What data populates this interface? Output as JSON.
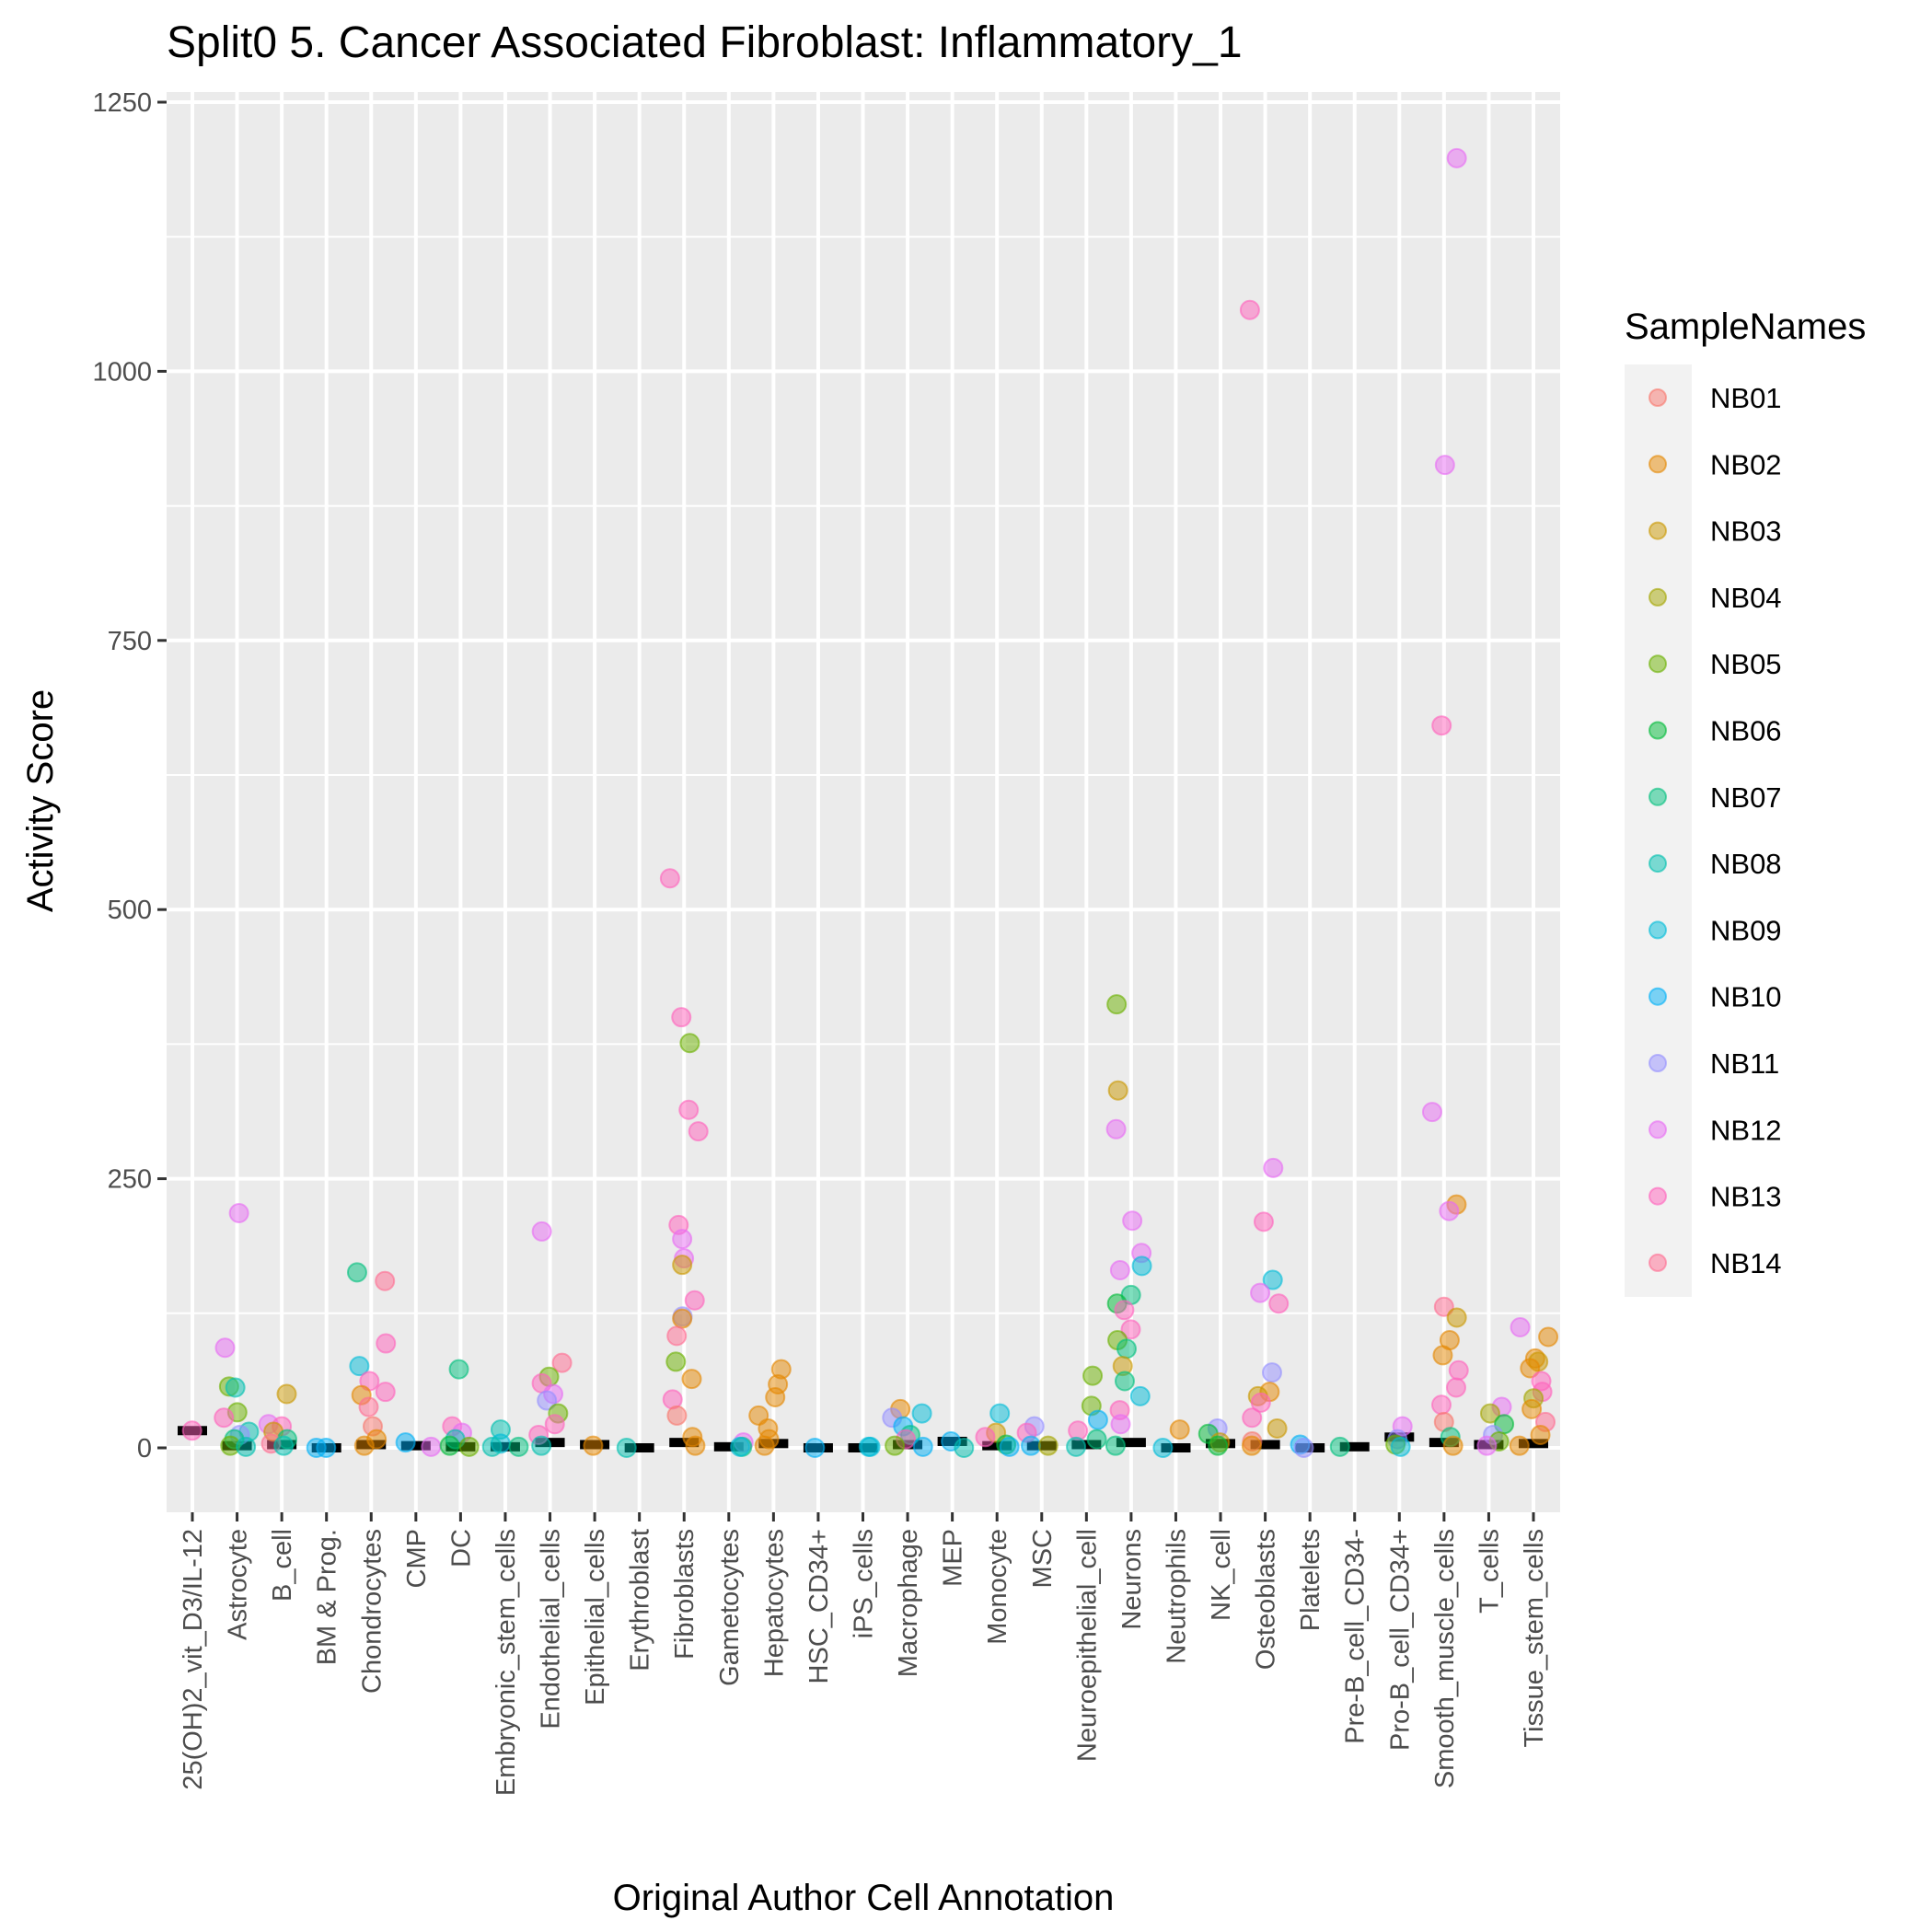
{
  "chart_data": {
    "type": "scatter",
    "subtype": "jitter-strip",
    "title": "Split0 5. Cancer Associated Fibroblast: Inflammatory_1",
    "xlabel": "Original Author Cell Annotation",
    "ylabel": "Activity Score",
    "ylim": [
      -120,
      1270
    ],
    "yticks": [
      0,
      250,
      500,
      750,
      1000,
      1250
    ],
    "ytick_labels": [
      "0",
      "250",
      "500",
      "750",
      "1000",
      "1250"
    ],
    "grid": true,
    "legend": {
      "title": "SampleNames",
      "position": "right",
      "entries": [
        {
          "label": "NB01",
          "color": "#F8766D"
        },
        {
          "label": "NB02",
          "color": "#E58700"
        },
        {
          "label": "NB03",
          "color": "#C99800"
        },
        {
          "label": "NB04",
          "color": "#A3A500"
        },
        {
          "label": "NB05",
          "color": "#6BB100"
        },
        {
          "label": "NB06",
          "color": "#00BA38"
        },
        {
          "label": "NB07",
          "color": "#00BF7D"
        },
        {
          "label": "NB08",
          "color": "#00C0AF"
        },
        {
          "label": "NB09",
          "color": "#00BCD8"
        },
        {
          "label": "NB10",
          "color": "#00B0F6"
        },
        {
          "label": "NB11",
          "color": "#9590FF"
        },
        {
          "label": "NB12",
          "color": "#E76BF3"
        },
        {
          "label": "NB13",
          "color": "#FF62BC"
        },
        {
          "label": "NB14",
          "color": "#FF6C91"
        }
      ]
    },
    "categories": [
      "25(OH)2_vit_D3/IL-12",
      "Astrocyte",
      "B_cell",
      "BM & Prog.",
      "Chondrocytes",
      "CMP",
      "DC",
      "Embryonic_stem_cells",
      "Endothelial_cells",
      "Epithelial_cells",
      "Erythroblast",
      "Fibroblasts",
      "Gametocytes",
      "Hepatocytes",
      "HSC_CD34+",
      "iPS_cells",
      "Macrophage",
      "MEP",
      "Monocyte",
      "MSC",
      "Neuroepithelial_cell",
      "Neurons",
      "Neutrophils",
      "NK_cell",
      "Osteoblasts",
      "Platelets",
      "Pre-B_cell_CD34-",
      "Pro-B_cell_CD34+",
      "Smooth_muscle_cells",
      "T_cells",
      "Tissue_stem_cells"
    ],
    "medians": [
      16,
      2,
      3,
      0,
      3,
      2,
      1,
      1,
      5,
      3,
      0,
      5,
      1,
      4,
      0,
      0,
      3,
      6,
      2,
      2,
      3,
      5,
      0,
      4,
      3,
      0,
      1,
      10,
      5,
      3,
      4
    ],
    "points": [
      {
        "cat": 0,
        "s": "NB13",
        "y": 16
      },
      {
        "cat": 1,
        "s": "NB12",
        "y": 218
      },
      {
        "cat": 1,
        "s": "NB12",
        "y": 93
      },
      {
        "cat": 1,
        "s": "NB05",
        "y": 57
      },
      {
        "cat": 1,
        "s": "NB08",
        "y": 56
      },
      {
        "cat": 1,
        "s": "NB05",
        "y": 33
      },
      {
        "cat": 1,
        "s": "NB13",
        "y": 28
      },
      {
        "cat": 1,
        "s": "NB08",
        "y": 15
      },
      {
        "cat": 1,
        "s": "NB11",
        "y": 12
      },
      {
        "cat": 1,
        "s": "NB07",
        "y": 8
      },
      {
        "cat": 1,
        "s": "NB05",
        "y": 2
      },
      {
        "cat": 1,
        "s": "NB08",
        "y": 1
      },
      {
        "cat": 2,
        "s": "NB03",
        "y": 50
      },
      {
        "cat": 2,
        "s": "NB12",
        "y": 22
      },
      {
        "cat": 2,
        "s": "NB13",
        "y": 20
      },
      {
        "cat": 2,
        "s": "NB03",
        "y": 15
      },
      {
        "cat": 2,
        "s": "NB07",
        "y": 8
      },
      {
        "cat": 2,
        "s": "NB14",
        "y": 4
      },
      {
        "cat": 2,
        "s": "NB08",
        "y": 2
      },
      {
        "cat": 3,
        "s": "NB10",
        "y": 0
      },
      {
        "cat": 3,
        "s": "NB10",
        "y": 0
      },
      {
        "cat": 4,
        "s": "NB07",
        "y": 163
      },
      {
        "cat": 4,
        "s": "NB14",
        "y": 155
      },
      {
        "cat": 4,
        "s": "NB13",
        "y": 97
      },
      {
        "cat": 4,
        "s": "NB09",
        "y": 76
      },
      {
        "cat": 4,
        "s": "NB13",
        "y": 62
      },
      {
        "cat": 4,
        "s": "NB13",
        "y": 52
      },
      {
        "cat": 4,
        "s": "NB02",
        "y": 49
      },
      {
        "cat": 4,
        "s": "NB14",
        "y": 38
      },
      {
        "cat": 4,
        "s": "NB01",
        "y": 20
      },
      {
        "cat": 4,
        "s": "NB02",
        "y": 8
      },
      {
        "cat": 4,
        "s": "NB02",
        "y": 2
      },
      {
        "cat": 5,
        "s": "NB10",
        "y": 5
      },
      {
        "cat": 5,
        "s": "NB12",
        "y": 1
      },
      {
        "cat": 6,
        "s": "NB07",
        "y": 73
      },
      {
        "cat": 6,
        "s": "NB13",
        "y": 20
      },
      {
        "cat": 6,
        "s": "NB12",
        "y": 14
      },
      {
        "cat": 6,
        "s": "NB08",
        "y": 8
      },
      {
        "cat": 6,
        "s": "NB06",
        "y": 2
      },
      {
        "cat": 6,
        "s": "NB05",
        "y": 1
      },
      {
        "cat": 7,
        "s": "NB08",
        "y": 17
      },
      {
        "cat": 7,
        "s": "NB09",
        "y": 4
      },
      {
        "cat": 7,
        "s": "NB08",
        "y": 1
      },
      {
        "cat": 7,
        "s": "NB07",
        "y": 1
      },
      {
        "cat": 8,
        "s": "NB12",
        "y": 201
      },
      {
        "cat": 8,
        "s": "NB14",
        "y": 79
      },
      {
        "cat": 8,
        "s": "NB05",
        "y": 66
      },
      {
        "cat": 8,
        "s": "NB13",
        "y": 60
      },
      {
        "cat": 8,
        "s": "NB12",
        "y": 50
      },
      {
        "cat": 8,
        "s": "NB11",
        "y": 44
      },
      {
        "cat": 8,
        "s": "NB05",
        "y": 32
      },
      {
        "cat": 8,
        "s": "NB13",
        "y": 22
      },
      {
        "cat": 8,
        "s": "NB13",
        "y": 12
      },
      {
        "cat": 8,
        "s": "NB08",
        "y": 2
      },
      {
        "cat": 9,
        "s": "NB02",
        "y": 2
      },
      {
        "cat": 10,
        "s": "NB08",
        "y": 0
      },
      {
        "cat": 11,
        "s": "NB13",
        "y": 529
      },
      {
        "cat": 11,
        "s": "NB13",
        "y": 400
      },
      {
        "cat": 11,
        "s": "NB05",
        "y": 376
      },
      {
        "cat": 11,
        "s": "NB13",
        "y": 314
      },
      {
        "cat": 11,
        "s": "NB13",
        "y": 294
      },
      {
        "cat": 11,
        "s": "NB13",
        "y": 207
      },
      {
        "cat": 11,
        "s": "NB12",
        "y": 194
      },
      {
        "cat": 11,
        "s": "NB12",
        "y": 176
      },
      {
        "cat": 11,
        "s": "NB03",
        "y": 170
      },
      {
        "cat": 11,
        "s": "NB13",
        "y": 137
      },
      {
        "cat": 11,
        "s": "NB11",
        "y": 122
      },
      {
        "cat": 11,
        "s": "NB02",
        "y": 120
      },
      {
        "cat": 11,
        "s": "NB14",
        "y": 104
      },
      {
        "cat": 11,
        "s": "NB05",
        "y": 80
      },
      {
        "cat": 11,
        "s": "NB02",
        "y": 64
      },
      {
        "cat": 11,
        "s": "NB13",
        "y": 45
      },
      {
        "cat": 11,
        "s": "NB01",
        "y": 30
      },
      {
        "cat": 11,
        "s": "NB02",
        "y": 10
      },
      {
        "cat": 11,
        "s": "NB02",
        "y": 2
      },
      {
        "cat": 12,
        "s": "NB12",
        "y": 5
      },
      {
        "cat": 12,
        "s": "NB07",
        "y": 1
      },
      {
        "cat": 12,
        "s": "NB09",
        "y": 1
      },
      {
        "cat": 13,
        "s": "NB02",
        "y": 73
      },
      {
        "cat": 13,
        "s": "NB02",
        "y": 59
      },
      {
        "cat": 13,
        "s": "NB02",
        "y": 47
      },
      {
        "cat": 13,
        "s": "NB02",
        "y": 30
      },
      {
        "cat": 13,
        "s": "NB02",
        "y": 18
      },
      {
        "cat": 13,
        "s": "NB02",
        "y": 8
      },
      {
        "cat": 13,
        "s": "NB02",
        "y": 2
      },
      {
        "cat": 14,
        "s": "NB10",
        "y": 0
      },
      {
        "cat": 15,
        "s": "NB09",
        "y": 1
      },
      {
        "cat": 15,
        "s": "NB09",
        "y": 1
      },
      {
        "cat": 16,
        "s": "NB02",
        "y": 36
      },
      {
        "cat": 16,
        "s": "NB09",
        "y": 32
      },
      {
        "cat": 16,
        "s": "NB11",
        "y": 28
      },
      {
        "cat": 16,
        "s": "NB10",
        "y": 20
      },
      {
        "cat": 16,
        "s": "NB07",
        "y": 12
      },
      {
        "cat": 16,
        "s": "NB13",
        "y": 8
      },
      {
        "cat": 16,
        "s": "NB05",
        "y": 2
      },
      {
        "cat": 16,
        "s": "NB10",
        "y": 1
      },
      {
        "cat": 17,
        "s": "NB10",
        "y": 6
      },
      {
        "cat": 17,
        "s": "NB08",
        "y": 0
      },
      {
        "cat": 18,
        "s": "NB09",
        "y": 32
      },
      {
        "cat": 18,
        "s": "NB03",
        "y": 14
      },
      {
        "cat": 18,
        "s": "NB13",
        "y": 10
      },
      {
        "cat": 18,
        "s": "NB06",
        "y": 3
      },
      {
        "cat": 18,
        "s": "NB10",
        "y": 1
      },
      {
        "cat": 19,
        "s": "NB11",
        "y": 20
      },
      {
        "cat": 19,
        "s": "NB13",
        "y": 14
      },
      {
        "cat": 19,
        "s": "NB10",
        "y": 2
      },
      {
        "cat": 19,
        "s": "NB04",
        "y": 2
      },
      {
        "cat": 20,
        "s": "NB05",
        "y": 67
      },
      {
        "cat": 20,
        "s": "NB05",
        "y": 39
      },
      {
        "cat": 20,
        "s": "NB10",
        "y": 26
      },
      {
        "cat": 20,
        "s": "NB13",
        "y": 16
      },
      {
        "cat": 20,
        "s": "NB07",
        "y": 8
      },
      {
        "cat": 20,
        "s": "NB08",
        "y": 1
      },
      {
        "cat": 21,
        "s": "NB05",
        "y": 412
      },
      {
        "cat": 21,
        "s": "NB03",
        "y": 332
      },
      {
        "cat": 21,
        "s": "NB12",
        "y": 296
      },
      {
        "cat": 21,
        "s": "NB12",
        "y": 211
      },
      {
        "cat": 21,
        "s": "NB12",
        "y": 181
      },
      {
        "cat": 21,
        "s": "NB09",
        "y": 169
      },
      {
        "cat": 21,
        "s": "NB12",
        "y": 165
      },
      {
        "cat": 21,
        "s": "NB07",
        "y": 142
      },
      {
        "cat": 21,
        "s": "NB06",
        "y": 134
      },
      {
        "cat": 21,
        "s": "NB13",
        "y": 128
      },
      {
        "cat": 21,
        "s": "NB13",
        "y": 110
      },
      {
        "cat": 21,
        "s": "NB05",
        "y": 100
      },
      {
        "cat": 21,
        "s": "NB07",
        "y": 92
      },
      {
        "cat": 21,
        "s": "NB03",
        "y": 76
      },
      {
        "cat": 21,
        "s": "NB07",
        "y": 62
      },
      {
        "cat": 21,
        "s": "NB09",
        "y": 48
      },
      {
        "cat": 21,
        "s": "NB13",
        "y": 35
      },
      {
        "cat": 21,
        "s": "NB12",
        "y": 22
      },
      {
        "cat": 21,
        "s": "NB07",
        "y": 2
      },
      {
        "cat": 22,
        "s": "NB02",
        "y": 17
      },
      {
        "cat": 22,
        "s": "NB09",
        "y": 0
      },
      {
        "cat": 23,
        "s": "NB11",
        "y": 18
      },
      {
        "cat": 23,
        "s": "NB06",
        "y": 13
      },
      {
        "cat": 23,
        "s": "NB03",
        "y": 5
      },
      {
        "cat": 23,
        "s": "NB06",
        "y": 2
      },
      {
        "cat": 24,
        "s": "NB13",
        "y": 1057
      },
      {
        "cat": 24,
        "s": "NB12",
        "y": 260
      },
      {
        "cat": 24,
        "s": "NB13",
        "y": 210
      },
      {
        "cat": 24,
        "s": "NB09",
        "y": 156
      },
      {
        "cat": 24,
        "s": "NB12",
        "y": 144
      },
      {
        "cat": 24,
        "s": "NB13",
        "y": 134
      },
      {
        "cat": 24,
        "s": "NB11",
        "y": 70
      },
      {
        "cat": 24,
        "s": "NB02",
        "y": 52
      },
      {
        "cat": 24,
        "s": "NB03",
        "y": 48
      },
      {
        "cat": 24,
        "s": "NB13",
        "y": 42
      },
      {
        "cat": 24,
        "s": "NB13",
        "y": 28
      },
      {
        "cat": 24,
        "s": "NB03",
        "y": 18
      },
      {
        "cat": 24,
        "s": "NB01",
        "y": 6
      },
      {
        "cat": 24,
        "s": "NB02",
        "y": 2
      },
      {
        "cat": 25,
        "s": "NB10",
        "y": 3
      },
      {
        "cat": 25,
        "s": "NB11",
        "y": 0
      },
      {
        "cat": 26,
        "s": "NB07",
        "y": 1
      },
      {
        "cat": 27,
        "s": "NB12",
        "y": 20
      },
      {
        "cat": 27,
        "s": "NB11",
        "y": 8
      },
      {
        "cat": 27,
        "s": "NB05",
        "y": 3
      },
      {
        "cat": 27,
        "s": "NB09",
        "y": 1
      },
      {
        "cat": 28,
        "s": "NB12",
        "y": 1198
      },
      {
        "cat": 28,
        "s": "NB12",
        "y": 913
      },
      {
        "cat": 28,
        "s": "NB13",
        "y": 671
      },
      {
        "cat": 28,
        "s": "NB12",
        "y": 312
      },
      {
        "cat": 28,
        "s": "NB02",
        "y": 226
      },
      {
        "cat": 28,
        "s": "NB12",
        "y": 220
      },
      {
        "cat": 28,
        "s": "NB14",
        "y": 131
      },
      {
        "cat": 28,
        "s": "NB03",
        "y": 121
      },
      {
        "cat": 28,
        "s": "NB02",
        "y": 100
      },
      {
        "cat": 28,
        "s": "NB02",
        "y": 86
      },
      {
        "cat": 28,
        "s": "NB13",
        "y": 72
      },
      {
        "cat": 28,
        "s": "NB13",
        "y": 56
      },
      {
        "cat": 28,
        "s": "NB13",
        "y": 40
      },
      {
        "cat": 28,
        "s": "NB01",
        "y": 24
      },
      {
        "cat": 28,
        "s": "NB07",
        "y": 10
      },
      {
        "cat": 28,
        "s": "NB02",
        "y": 2
      },
      {
        "cat": 29,
        "s": "NB12",
        "y": 38
      },
      {
        "cat": 29,
        "s": "NB04",
        "y": 32
      },
      {
        "cat": 29,
        "s": "NB06",
        "y": 22
      },
      {
        "cat": 29,
        "s": "NB11",
        "y": 12
      },
      {
        "cat": 29,
        "s": "NB05",
        "y": 6
      },
      {
        "cat": 29,
        "s": "NB12",
        "y": 2
      },
      {
        "cat": 30,
        "s": "NB12",
        "y": 112
      },
      {
        "cat": 30,
        "s": "NB02",
        "y": 103
      },
      {
        "cat": 30,
        "s": "NB02",
        "y": 83
      },
      {
        "cat": 30,
        "s": "NB03",
        "y": 80
      },
      {
        "cat": 30,
        "s": "NB02",
        "y": 74
      },
      {
        "cat": 30,
        "s": "NB13",
        "y": 62
      },
      {
        "cat": 30,
        "s": "NB13",
        "y": 52
      },
      {
        "cat": 30,
        "s": "NB04",
        "y": 46
      },
      {
        "cat": 30,
        "s": "NB02",
        "y": 36
      },
      {
        "cat": 30,
        "s": "NB14",
        "y": 24
      },
      {
        "cat": 30,
        "s": "NB02",
        "y": 12
      },
      {
        "cat": 30,
        "s": "NB02",
        "y": 2
      }
    ]
  }
}
